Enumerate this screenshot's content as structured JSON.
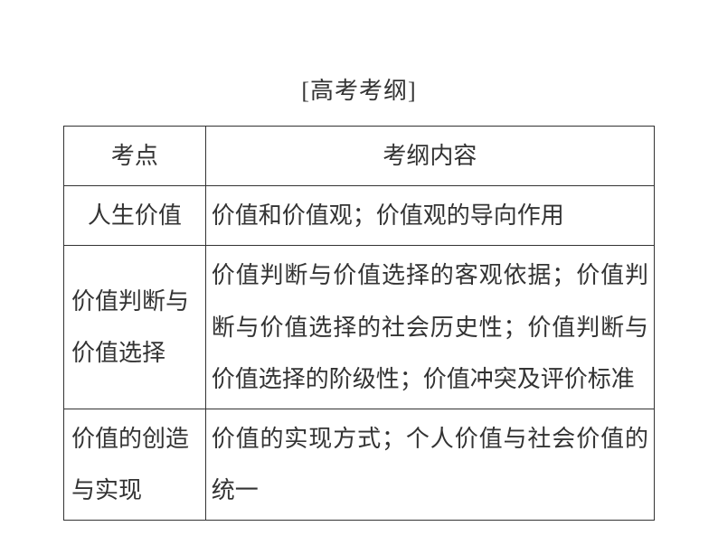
{
  "title": "[高考考纲]",
  "table": {
    "border_color": "#333333",
    "text_color": "#333333",
    "font_size_pt": 20,
    "background_color": "#ffffff",
    "col_widths_pct": [
      24,
      76
    ],
    "headers": {
      "left": "考点",
      "right": "考纲内容"
    },
    "rows": [
      {
        "topic": "人生价值",
        "topic_align": "center",
        "content": "价值和价值观；价值观的导向作用"
      },
      {
        "topic": "价值判断与价值选择",
        "topic_align": "left",
        "content": "价值判断与价值选择的客观依据；价值判断与价值选择的社会历史性；价值判断与价值选择的阶级性；价值冲突及评价标准"
      },
      {
        "topic": "价值的创造与实现",
        "topic_align": "left",
        "content": "价值的实现方式；个人价值与社会价值的统一"
      }
    ]
  }
}
